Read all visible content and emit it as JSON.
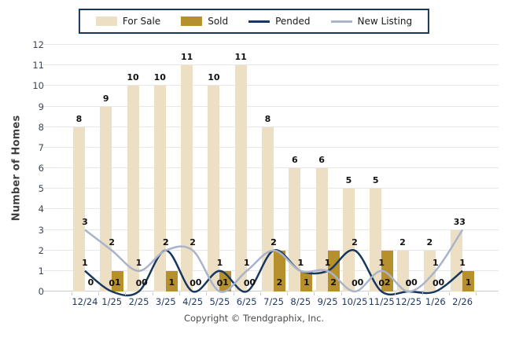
{
  "legend": {
    "items": [
      {
        "label": "For Sale",
        "type": "bar",
        "color": "#ECDFC3"
      },
      {
        "label": "Sold",
        "type": "bar",
        "color": "#B6902D"
      },
      {
        "label": "Pended",
        "type": "line",
        "color": "#17375E"
      },
      {
        "label": "New Listing",
        "type": "line",
        "color": "#A9B3C9"
      }
    ]
  },
  "footer": {
    "copyright": "Copyright © Trendgraphix, Inc."
  },
  "chart_data": {
    "type": "bar+line combo",
    "title": "",
    "xlabel": "",
    "ylabel": "Number of Homes",
    "ylim": [
      0,
      12
    ],
    "ytick_step": 1,
    "grid": true,
    "legend_position": "top center",
    "categories": [
      "12/24",
      "1/25",
      "2/25",
      "3/25",
      "4/25",
      "5/25",
      "6/25",
      "7/25",
      "8/25",
      "9/25",
      "10/25",
      "11/25",
      "12/25",
      "1/26",
      "2/26"
    ],
    "series": [
      {
        "name": "For Sale",
        "type": "bar",
        "color": "#ECDFC3",
        "values": [
          8,
          9,
          10,
          10,
          11,
          10,
          11,
          8,
          6,
          6,
          5,
          5,
          2,
          2,
          3
        ]
      },
      {
        "name": "Sold",
        "type": "bar",
        "color": "#B6902D",
        "values": [
          0,
          1,
          0,
          1,
          0,
          1,
          0,
          2,
          1,
          2,
          0,
          2,
          0,
          0,
          1
        ]
      },
      {
        "name": "Pended",
        "type": "line",
        "color": "#17375E",
        "values": [
          1,
          0,
          0,
          2,
          0,
          1,
          0,
          2,
          1,
          1,
          2,
          0,
          0,
          0,
          1
        ]
      },
      {
        "name": "New Listing",
        "type": "line",
        "color": "#A9B3C9",
        "values": [
          3,
          2,
          1,
          2,
          2,
          0,
          1,
          2,
          1,
          1,
          0,
          1,
          0,
          1,
          3
        ]
      }
    ],
    "colors": {
      "grid": "#E7E7E7",
      "axis_baseline": "#CFCFCF",
      "x_labels": "#1F3864",
      "y_labels": "#3D4756",
      "data_labels": "#111111",
      "legend_border": "#17375E"
    }
  }
}
